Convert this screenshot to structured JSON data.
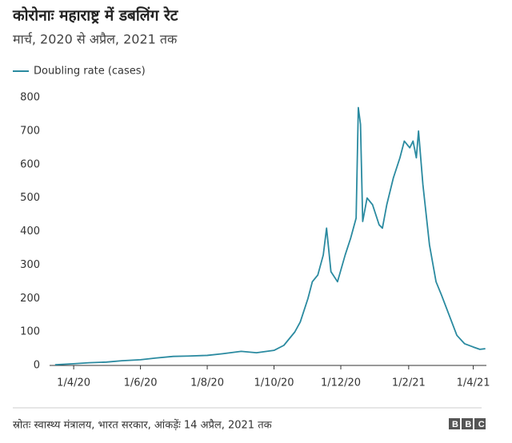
{
  "chart_data": {
    "type": "line",
    "title": "कोरोनाः महाराष्ट्र में डबलिंग रेट",
    "subtitle": "मार्च, 2020 से अप्रैल, 2021 तक",
    "source": "स्रोतः स्वास्थ्य मंत्रालय, भारत सरकार, आंकड़ेंः 14 अप्रैल, 2021 तक",
    "logo": "BBC",
    "x": [
      "2020-03-15",
      "2020-04-01",
      "2020-04-15",
      "2020-05-01",
      "2020-05-15",
      "2020-06-01",
      "2020-06-15",
      "2020-07-01",
      "2020-07-15",
      "2020-08-01",
      "2020-08-15",
      "2020-09-01",
      "2020-09-15",
      "2020-10-01",
      "2020-10-10",
      "2020-10-20",
      "2020-10-25",
      "2020-11-01",
      "2020-11-05",
      "2020-11-10",
      "2020-11-15",
      "2020-11-18",
      "2020-11-22",
      "2020-11-28",
      "2020-12-05",
      "2020-12-10",
      "2020-12-15",
      "2020-12-17",
      "2020-12-19",
      "2020-12-21",
      "2020-12-25",
      "2020-12-30",
      "2021-01-05",
      "2021-01-08",
      "2021-01-12",
      "2021-01-18",
      "2021-01-24",
      "2021-01-28",
      "2021-02-02",
      "2021-02-05",
      "2021-02-08",
      "2021-02-10",
      "2021-02-14",
      "2021-02-20",
      "2021-02-26",
      "2021-03-03",
      "2021-03-10",
      "2021-03-17",
      "2021-03-24",
      "2021-04-01",
      "2021-04-07",
      "2021-04-12"
    ],
    "series": [
      {
        "name": "Doubling rate (cases)",
        "color": "#2a8aa0",
        "values": [
          2,
          5,
          8,
          10,
          14,
          17,
          22,
          27,
          28,
          30,
          35,
          42,
          38,
          45,
          60,
          100,
          130,
          200,
          250,
          270,
          330,
          410,
          280,
          250,
          330,
          380,
          440,
          770,
          720,
          430,
          500,
          480,
          420,
          410,
          480,
          560,
          620,
          670,
          650,
          670,
          620,
          700,
          540,
          360,
          250,
          210,
          150,
          90,
          65,
          55,
          48,
          50
        ]
      }
    ],
    "xlim": [
      "2020-03-10",
      "2021-04-13"
    ],
    "xticks": [
      {
        "value": "2020-04-01",
        "label": "1/4/20"
      },
      {
        "value": "2020-06-01",
        "label": "1/6/20"
      },
      {
        "value": "2020-08-01",
        "label": "1/8/20"
      },
      {
        "value": "2020-10-01",
        "label": "1/10/20"
      },
      {
        "value": "2020-12-01",
        "label": "1/12/20"
      },
      {
        "value": "2021-02-01",
        "label": "1/2/21"
      },
      {
        "value": "2021-04-01",
        "label": "1/4/21"
      }
    ],
    "ylim": [
      0,
      800
    ],
    "yticks": [
      0,
      100,
      200,
      300,
      400,
      500,
      600,
      700,
      800
    ],
    "grid": false
  }
}
